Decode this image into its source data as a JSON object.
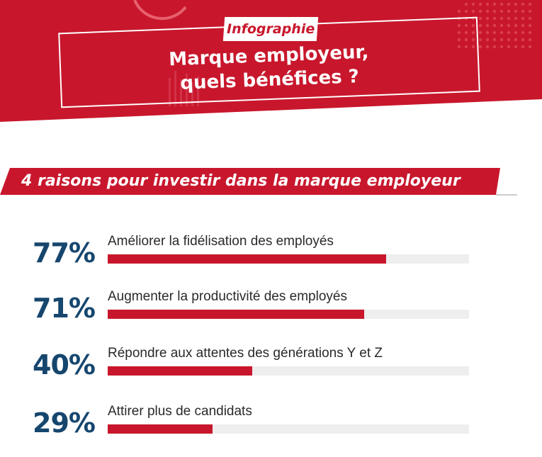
{
  "header": {
    "tag": "Infographie",
    "title_line1": "Marque employeur,",
    "title_line2": "quels bénéfices ?"
  },
  "banner": {
    "text": "4 raisons pour investir dans la marque employeur"
  },
  "colors": {
    "brand_red": "#c8172c",
    "percent_blue": "#16466e",
    "track_gray": "#eeeeee"
  },
  "chart_data": {
    "type": "bar",
    "orientation": "horizontal",
    "title": "4 raisons pour investir dans la marque employeur",
    "categories": [
      "Améliorer la fidélisation des employés",
      "Augmenter la productivité des employés",
      "Répondre aux attentes des générations Y et Z",
      "Attirer plus de candidats"
    ],
    "values": [
      77,
      71,
      40,
      29
    ],
    "value_labels": [
      "77%",
      "71%",
      "40%",
      "29%"
    ],
    "xlim": [
      0,
      100
    ],
    "grid": false,
    "legend": "none"
  }
}
